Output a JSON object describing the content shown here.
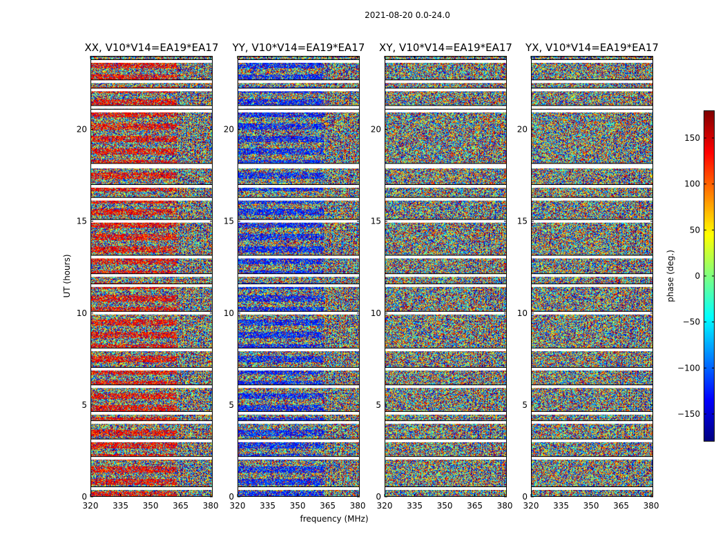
{
  "chart_data": {
    "type": "heatmap",
    "suptitle": "2021-08-20 0.0-24.0",
    "panels": [
      {
        "title": "XX, V10*V14=EA19*EA17",
        "key": "xx",
        "coherent": 0.6
      },
      {
        "title": "YY, V10*V14=EA19*EA17",
        "key": "yy",
        "coherent": 0.6
      },
      {
        "title": "XY, V10*V14=EA19*EA17",
        "key": "xy",
        "coherent": 0.05
      },
      {
        "title": "YX, V10*V14=EA19*EA17",
        "key": "yx",
        "coherent": 0.05
      }
    ],
    "xlabel": "frequency (MHz)",
    "ylabel": "UT (hours)",
    "xlim": [
      320,
      381
    ],
    "ylim": [
      0,
      24
    ],
    "xticks": [
      "320",
      "335",
      "350",
      "365",
      "380"
    ],
    "xtick_values": [
      320,
      335,
      350,
      365,
      380
    ],
    "yticks": [
      "0",
      "5",
      "10",
      "15",
      "20"
    ],
    "ytick_values": [
      0,
      5,
      10,
      15,
      20
    ],
    "colorbar": {
      "label": "phase (deg.)",
      "range": [
        -180,
        180
      ],
      "ticks": [
        "150",
        "100",
        "50",
        "0",
        "−50",
        "−100",
        "−150"
      ],
      "tick_values": [
        150,
        100,
        50,
        0,
        -50,
        -100,
        -150
      ],
      "colormap": "jet"
    },
    "flagged_hours": [
      0.45,
      2.1,
      3.05,
      4.05,
      4.55,
      6.0,
      6.95,
      8.0,
      10.0,
      11.5,
      12.05,
      13.05,
      15.0,
      16.2,
      16.9,
      17.95,
      18.05,
      21.0,
      21.2,
      22.15,
      22.6,
      23.7
    ]
  }
}
